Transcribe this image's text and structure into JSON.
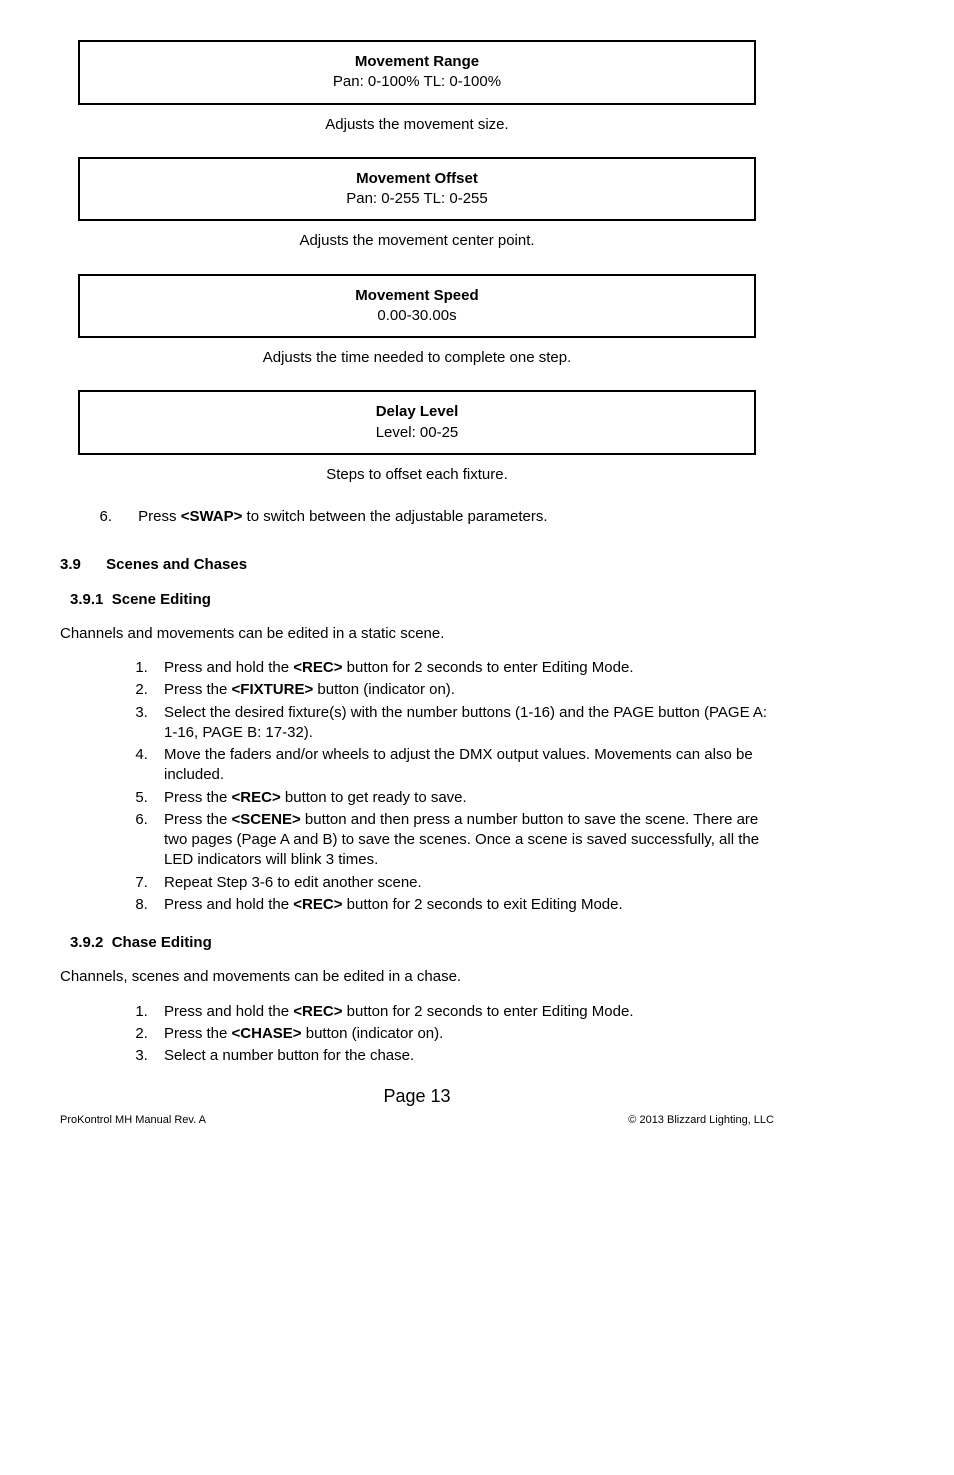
{
  "box1": {
    "title": "Movement Range",
    "line": "Pan: 0-100%    TL: 0-100%"
  },
  "cap1": "Adjusts the movement size.",
  "box2": {
    "title": "Movement Offset",
    "line": "Pan: 0-255    TL: 0-255"
  },
  "cap2": "Adjusts the movement center point.",
  "box3": {
    "title": "Movement Speed",
    "line": "0.00-30.00s"
  },
  "cap3": "Adjusts the time needed to complete one step.",
  "box4": {
    "title": "Delay Level",
    "line": "Level: 00-25"
  },
  "cap4": "Steps to offset each fixture.",
  "step6": {
    "num": "6.",
    "pre": "Press ",
    "bold": "<SWAP>",
    "post": " to switch between the adjustable parameters."
  },
  "sec39": {
    "num": "3.9",
    "title": "Scenes and Chases"
  },
  "sec391": {
    "num": "3.9.1",
    "title": "Scene Editing"
  },
  "p391": "Channels and movements can be edited in a static scene.",
  "list391": [
    {
      "pre": "Press and hold the ",
      "bold": "<REC>",
      "post": " button for 2 seconds to enter Editing Mode."
    },
    {
      "pre": "Press the ",
      "bold": "<FIXTURE>",
      "post": " button (indicator on)."
    },
    {
      "pre": "Select the desired fixture(s) with the number buttons (1-16) and the PAGE button (PAGE A: 1-16, PAGE B: 17-32).",
      "bold": "",
      "post": ""
    },
    {
      "pre": "Move the faders and/or wheels to adjust the DMX output values. Movements can also be included.",
      "bold": "",
      "post": ""
    },
    {
      "pre": "Press the ",
      "bold": "<REC>",
      "post": " button to get ready to save."
    },
    {
      "pre": "Press the ",
      "bold": "<SCENE>",
      "post": " button and then press a number button to save the scene. There are two pages (Page A and B) to save the scenes. Once a scene is saved successfully, all the LED indicators will blink 3 times."
    },
    {
      "pre": "Repeat Step 3-6 to edit another scene.",
      "bold": "",
      "post": ""
    },
    {
      "pre": "Press and hold the ",
      "bold": "<REC>",
      "post": " button for 2 seconds to exit Editing Mode."
    }
  ],
  "sec392": {
    "num": "3.9.2",
    "title": "Chase Editing"
  },
  "p392": "Channels, scenes and movements can be edited in a chase.",
  "list392": [
    {
      "pre": "Press and hold the ",
      "bold": "<REC>",
      "post": " button for 2 seconds to enter Editing Mode."
    },
    {
      "pre": "Press the ",
      "bold": "<CHASE>",
      "post": " button (indicator on)."
    },
    {
      "pre": "Select a number button for the chase.",
      "bold": "",
      "post": ""
    }
  ],
  "pagenum": "Page 13",
  "footer": {
    "left": "ProKontrol MH Manual Rev. A",
    "right": "© 2013 Blizzard Lighting, LLC"
  }
}
